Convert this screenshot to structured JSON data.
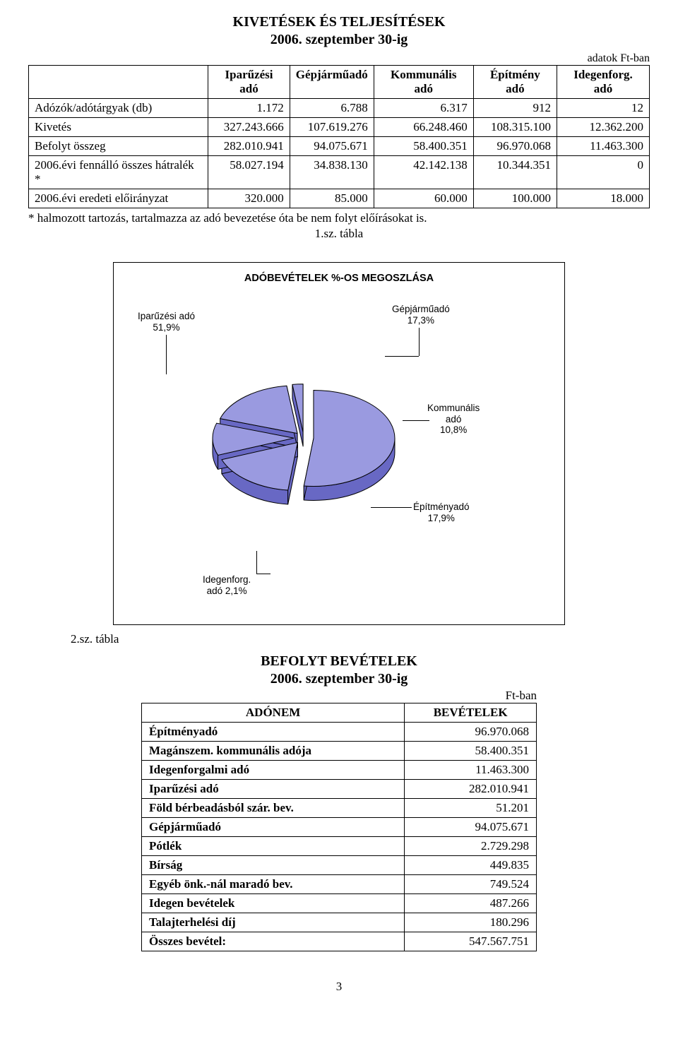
{
  "header": {
    "title": "KIVETÉSEK ÉS TELJESÍTÉSEK",
    "subtitle": "2006. szeptember 30-ig",
    "units": "adatok Ft-ban"
  },
  "table1": {
    "columns": [
      "",
      "Iparűzési adó",
      "Gépjárműadó",
      "Kommunális adó",
      "Építmény adó",
      "Idegenforg. adó"
    ],
    "rows": [
      {
        "label": "Adózók/adótárgyak (db)",
        "vals": [
          "1.172",
          "6.788",
          "6.317",
          "912",
          "12"
        ]
      },
      {
        "label": "Kivetés",
        "vals": [
          "327.243.666",
          "107.619.276",
          "66.248.460",
          "108.315.100",
          "12.362.200"
        ]
      },
      {
        "label": "Befolyt összeg",
        "vals": [
          "282.010.941",
          "94.075.671",
          "58.400.351",
          "96.970.068",
          "11.463.300"
        ]
      },
      {
        "label": "2006.évi fennálló összes hátralék *",
        "vals": [
          "58.027.194",
          "34.838.130",
          "42.142.138",
          "10.344.351",
          "0"
        ]
      },
      {
        "label": "2006.évi eredeti előirányzat",
        "vals": [
          "320.000",
          "85.000",
          "60.000",
          "100.000",
          "18.000"
        ]
      }
    ],
    "footnote": "* halmozott tartozás, tartalmazza az adó bevezetése óta be nem folyt előírásokat is.",
    "figref": "1.sz. tábla"
  },
  "chart": {
    "title": "ADÓBEVÉTELEK %-OS MEGOSZLÁSA",
    "labels": {
      "iparuzesi": "Iparűzési adó\n51,9%",
      "gepjarmu": "Gépjárműadó\n17,3%",
      "kommunalis": "Kommunális\nadó\n10,8%",
      "epitmeny": "Építményadó\n17,9%",
      "idegen": "Idegenforg.\nadó 2,1%"
    },
    "slices": [
      {
        "name": "iparuzesi",
        "pct": 51.9,
        "fill": "#9a9ae0",
        "side": "#6a6ac8"
      },
      {
        "name": "gepjarmu",
        "pct": 17.3,
        "fill": "#9a9ae0",
        "side": "#6a6ac8"
      },
      {
        "name": "kommunalis",
        "pct": 10.8,
        "fill": "#9a9ae0",
        "side": "#6a6ac8"
      },
      {
        "name": "epitmeny",
        "pct": 17.9,
        "fill": "#9a9ae0",
        "side": "#6a6ac8"
      },
      {
        "name": "idegen",
        "pct": 2.1,
        "fill": "#9a9ae0",
        "side": "#6a6ac8"
      }
    ],
    "colors": {
      "top": "#9a9ae0",
      "side": "#6868c4",
      "outline": "#000000",
      "background": "#ffffff"
    },
    "figref": "2.sz. tábla"
  },
  "header2": {
    "title": "BEFOLYT BEVÉTELEK",
    "subtitle": "2006. szeptember 30-ig",
    "units": "Ft-ban"
  },
  "table2": {
    "columns": [
      "ADÓNEM",
      "BEVÉTELEK"
    ],
    "rows": [
      {
        "label": "Építményadó",
        "val": "96.970.068",
        "bold": true
      },
      {
        "label": "Magánszem. kommunális adója",
        "val": "58.400.351",
        "bold": true
      },
      {
        "label": "Idegenforgalmi adó",
        "val": "11.463.300",
        "bold": true
      },
      {
        "label": "Iparűzési adó",
        "val": "282.010.941",
        "bold": true
      },
      {
        "label": "Föld bérbeadásból szár. bev.",
        "val": "51.201",
        "bold": true
      },
      {
        "label": "Gépjárműadó",
        "val": "94.075.671",
        "bold": true
      },
      {
        "label": "Pótlék",
        "val": "2.729.298",
        "bold": true
      },
      {
        "label": "Bírság",
        "val": "449.835",
        "bold": true
      },
      {
        "label": "Egyéb önk.-nál maradó bev.",
        "val": "749.524",
        "bold": true
      },
      {
        "label": "Idegen bevételek",
        "val": "487.266",
        "bold": true
      },
      {
        "label": "Talajterhelési díj",
        "val": "180.296",
        "bold": true
      },
      {
        "label": "Összes bevétel:",
        "val": "547.567.751",
        "bold": true
      }
    ]
  },
  "page_number": "3"
}
